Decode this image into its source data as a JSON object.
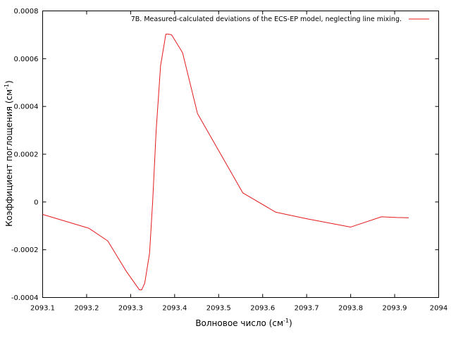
{
  "chart_data": {
    "type": "line",
    "xlabel": "Волновое число (см",
    "xlabel_sup": "-1",
    "xlabel_close": ")",
    "ylabel": "Коэффициент поглощения (см",
    "ylabel_sup": "-1",
    "ylabel_close": ")",
    "xlim": [
      2093.1,
      2094
    ],
    "ylim": [
      -0.0004,
      0.0008
    ],
    "xticks": [
      {
        "value": 2093.1,
        "label": "2093.1"
      },
      {
        "value": 2093.2,
        "label": "2093.2"
      },
      {
        "value": 2093.3,
        "label": "2093.3"
      },
      {
        "value": 2093.4,
        "label": "2093.4"
      },
      {
        "value": 2093.5,
        "label": "2093.5"
      },
      {
        "value": 2093.6,
        "label": "2093.6"
      },
      {
        "value": 2093.7,
        "label": "2093.7"
      },
      {
        "value": 2093.8,
        "label": "2093.8"
      },
      {
        "value": 2093.9,
        "label": "2093.9"
      },
      {
        "value": 2094,
        "label": "2094"
      }
    ],
    "yticks": [
      {
        "value": -0.0004,
        "label": "-0.0004"
      },
      {
        "value": -0.0002,
        "label": "-0.0002"
      },
      {
        "value": 0,
        "label": "0"
      },
      {
        "value": 0.0002,
        "label": "0.0002"
      },
      {
        "value": 0.0004,
        "label": "0.0004"
      },
      {
        "value": 0.0006,
        "label": "0.0006"
      },
      {
        "value": 0.0008,
        "label": "0.0008"
      }
    ],
    "grid": false,
    "legend_position": "top-right",
    "series": [
      {
        "name": "7B. Measured-calculated deviations of the ECS-EP model, neglecting line mixing.",
        "color": "#e41a1c",
        "x": [
          2093.1,
          2093.205,
          2093.248,
          2093.29,
          2093.32,
          2093.325,
          2093.332,
          2093.343,
          2093.35,
          2093.358,
          2093.368,
          2093.38,
          2093.385,
          2093.393,
          2093.418,
          2093.452,
          2093.555,
          2093.63,
          2093.7,
          2093.8,
          2093.87,
          2093.905,
          2093.932
        ],
        "y": [
          -5.2e-05,
          -0.00011,
          -0.000163,
          -0.00029,
          -0.000368,
          -0.000368,
          -0.00034,
          -0.000215,
          0.0,
          0.0003,
          0.00057,
          0.000703,
          0.000703,
          0.0007,
          0.000625,
          0.00037,
          3.8e-05,
          -4.3e-05,
          -7e-05,
          -0.000105,
          -6.2e-05,
          -6.5e-05,
          -6.6e-05
        ]
      }
    ]
  }
}
